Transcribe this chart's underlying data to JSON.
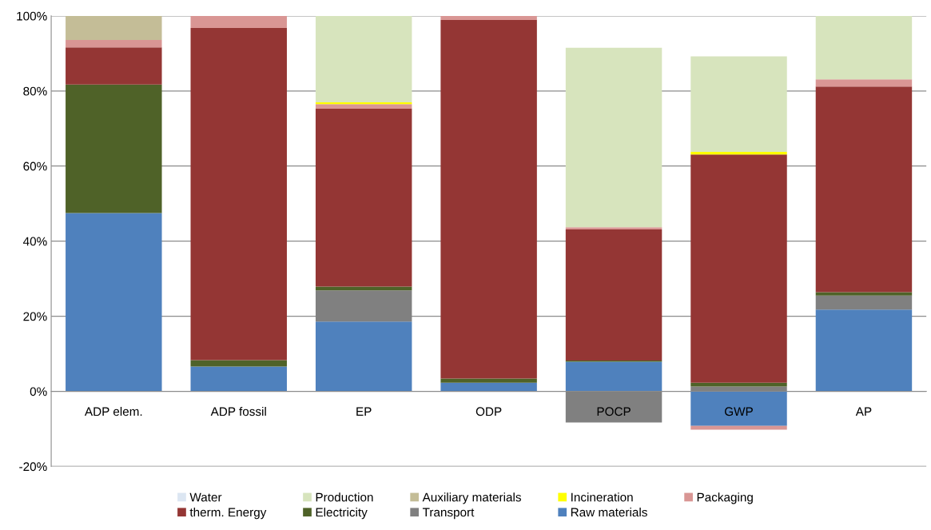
{
  "chart_data": {
    "type": "bar",
    "stacked": true,
    "categories": [
      "ADP elem.",
      "ADP fossil",
      "EP",
      "ODP",
      "POCP",
      "GWP",
      "AP"
    ],
    "series": [
      {
        "name": "Raw materials",
        "color": "#4f81bd",
        "values": [
          47.5,
          6.6,
          18.6,
          2.3,
          7.9,
          -9.2,
          21.8
        ]
      },
      {
        "name": "Transport",
        "color": "#808080",
        "values": [
          0,
          0,
          8.3,
          0,
          -8.3,
          1.3,
          3.7
        ]
      },
      {
        "name": "Electricity",
        "color": "#4f6228",
        "values": [
          34.2,
          1.7,
          1.0,
          1.1,
          0.3,
          1.0,
          0.9
        ]
      },
      {
        "name": "therm. Energy",
        "color": "#943634",
        "values": [
          9.9,
          88.5,
          47.4,
          95.5,
          34.9,
          60.8,
          54.8
        ]
      },
      {
        "name": "Packaging",
        "color": "#d99694",
        "values": [
          2.0,
          3.2,
          1.2,
          1.1,
          0.6,
          -1.0,
          1.9
        ]
      },
      {
        "name": "Incineration",
        "color": "#ffff00",
        "values": [
          0,
          0,
          0.5,
          0,
          0,
          0.7,
          0
        ]
      },
      {
        "name": "Auxiliary materials",
        "color": "#c4bd97",
        "values": [
          6.4,
          0,
          0,
          0,
          0,
          0,
          0
        ]
      },
      {
        "name": "Production",
        "color": "#d7e4bd",
        "values": [
          0,
          0,
          23.0,
          0,
          47.8,
          25.4,
          16.9
        ]
      },
      {
        "name": "Water",
        "color": "#dce6f2",
        "values": [
          0,
          0,
          0,
          0,
          0,
          0,
          0
        ]
      }
    ],
    "ylim": [
      -20,
      100
    ],
    "yticks": [
      {
        "value": -20,
        "label": "-20%"
      },
      {
        "value": 0,
        "label": "0%"
      },
      {
        "value": 20,
        "label": "20%"
      },
      {
        "value": 40,
        "label": "40%"
      },
      {
        "value": 60,
        "label": "60%"
      },
      {
        "value": 80,
        "label": "80%"
      },
      {
        "value": 100,
        "label": "100%"
      }
    ],
    "grid": "y",
    "legend": "bottom"
  }
}
